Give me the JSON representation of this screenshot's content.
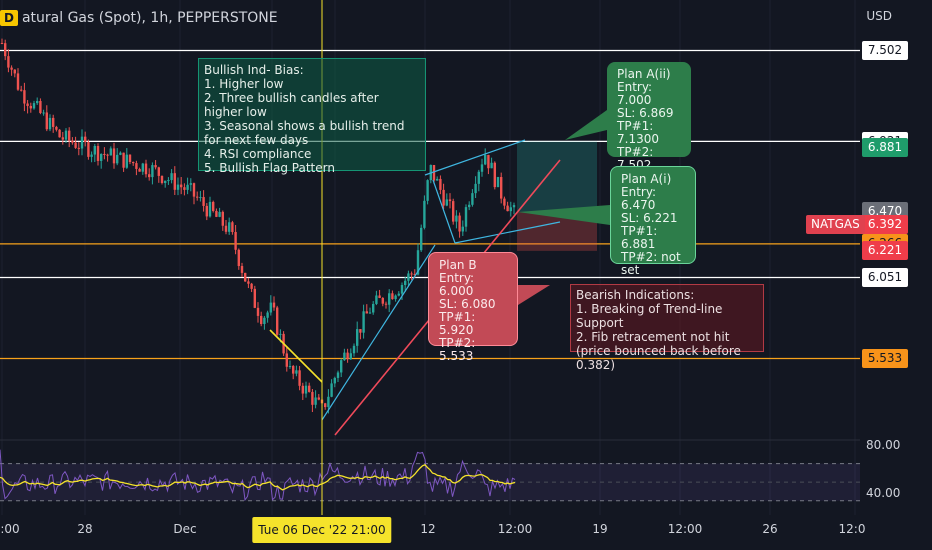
{
  "header": {
    "symbol_badge": "D",
    "title": "atural Gas (Spot), 1h, PEPPERSTONE",
    "currency": "USD"
  },
  "chart_data": {
    "type": "candlestick",
    "symbol": "NATGAS",
    "price_axis": {
      "ylim": [
        5.35,
        7.6
      ]
    },
    "price_tags": [
      {
        "label": "7.502",
        "value": 7.502,
        "style": "white"
      },
      {
        "label": "6.921",
        "value": 6.921,
        "style": "white"
      },
      {
        "label": "6.881",
        "value": 6.881,
        "style": "green"
      },
      {
        "label": "6.470",
        "value": 6.47,
        "style": "gray"
      },
      {
        "label": "6.392",
        "value": 6.392,
        "style": "red"
      },
      {
        "label": "6.266",
        "value": 6.266,
        "style": "orange"
      },
      {
        "label": "6.221",
        "value": 6.221,
        "style": "red"
      },
      {
        "label": "6.051",
        "value": 6.051,
        "style": "white"
      },
      {
        "label": "5.533",
        "value": 5.533,
        "style": "orange"
      }
    ],
    "symbol_tag": "NATGAS",
    "horizontal_lines": [
      {
        "value": 7.502,
        "color": "#ffffff"
      },
      {
        "value": 6.921,
        "color": "#ffffff"
      },
      {
        "value": 6.266,
        "color": "#f7a21b"
      },
      {
        "value": 6.051,
        "color": "#ffffff"
      },
      {
        "value": 5.533,
        "color": "#f7a21b"
      }
    ],
    "rsi": {
      "ticks": [
        "80.00",
        "40.00"
      ],
      "upper": 70,
      "lower": 30,
      "ylim": [
        20,
        90
      ]
    },
    "x_axis": {
      "labels": [
        ":00",
        "28",
        "Dec",
        "12",
        "12:00",
        "19",
        "12:00",
        "26",
        "12:0"
      ],
      "highlight": "Tue 06 Dec '22   21:00"
    },
    "notes": {
      "indicators": "Bullish Ind- Bias:\n1. Higher low\n2. Three bullish candles after higher low\n3. Seasonal shows a bullish trend for next few days\n4. RSI compliance\n5. Bullish Flag Pattern",
      "bearish": "Bearish Indications:\n1. Breaking of Trend-line Support\n2. Fib retracement not hit\n(price bounced back before 0.382)"
    },
    "plans": {
      "a2": "Plan A(ii)\nEntry: 7.000\nSL: 6.869\nTP#1: 7.1300\nTP#2: 7.502",
      "a1": "Plan A(i)\nEntry: 6.470\nSL: 6.221\nTP#1: 6.881\nTP#2: not set",
      "b": "Plan B\nEntry: 6.000\nSL: 6.080\nTP#1: 5.920\nTP#2: 5.533"
    },
    "colors": {
      "up": "#26a69a",
      "down": "#ef5350",
      "rsi": "#7e57c2",
      "rsi_ma": "#f5e32b",
      "crosshair": "#f5e32b"
    }
  }
}
